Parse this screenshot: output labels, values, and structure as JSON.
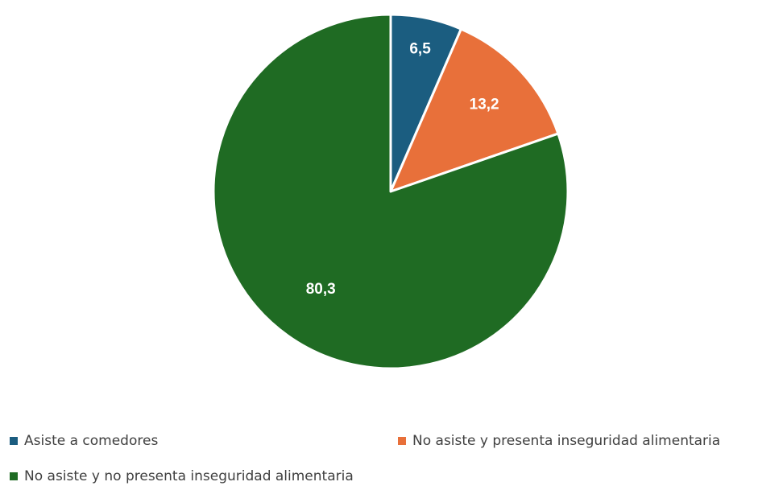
{
  "chart_data": {
    "type": "pie",
    "title": "",
    "categories": [
      "Asiste a comedores",
      "No asiste y presenta inseguridad alimentaria",
      "No asiste y no presenta inseguridad alimentaria"
    ],
    "values": [
      6.5,
      13.2,
      80.3
    ],
    "value_labels": [
      "6,5",
      "13,2",
      "80,3"
    ],
    "colors": [
      "#1b5d80",
      "#e8703a",
      "#1f6b23"
    ],
    "legend_position": "bottom"
  }
}
